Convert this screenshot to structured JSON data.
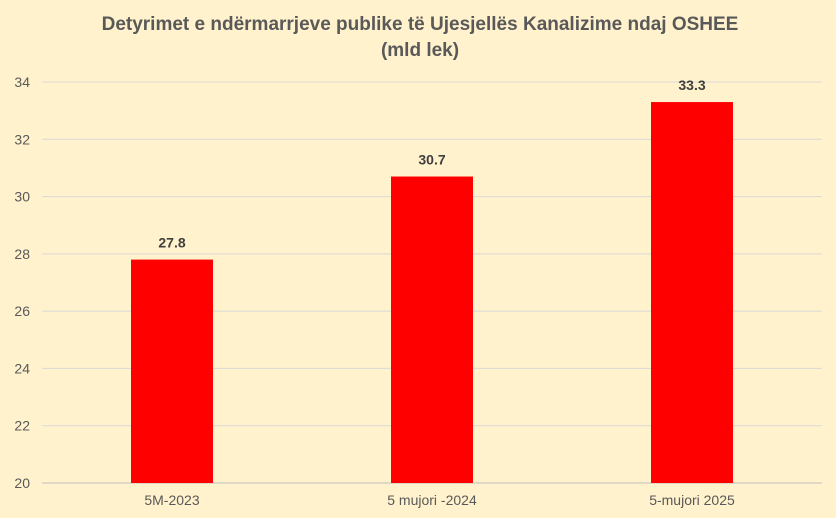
{
  "chart_data": {
    "type": "bar",
    "title": "Detyrimet e ndërmarrjeve publike  të Ujesjellës Kanalizime ndaj OSHEE (mld lek)",
    "categories": [
      "5M-2023",
      "5 mujori -2024",
      "5-mujori 2025"
    ],
    "values": [
      27.8,
      30.7,
      33.3
    ],
    "value_labels": [
      "27.8",
      "30.7",
      "33.3"
    ],
    "ylim": [
      20,
      34
    ],
    "yticks": [
      20,
      22,
      24,
      26,
      28,
      30,
      32,
      34
    ],
    "grid": true,
    "legend": "none",
    "xlabel": "",
    "ylabel": "",
    "bar_color": "#ff0000",
    "background_color": "#fff2cc"
  }
}
